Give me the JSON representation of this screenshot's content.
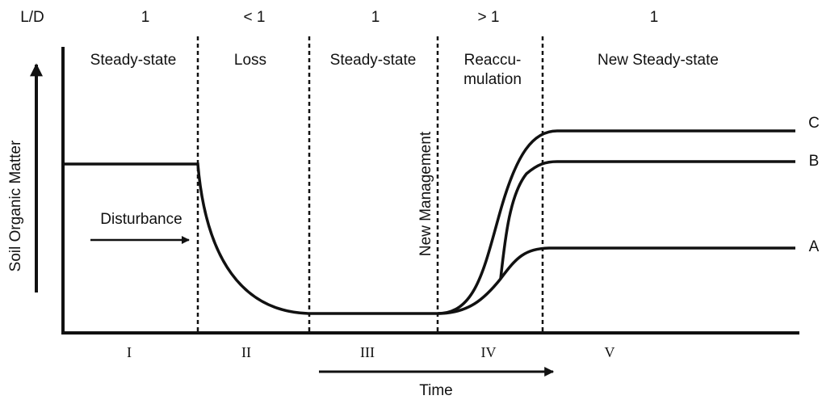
{
  "header": {
    "ratio_label": "L/D"
  },
  "phases": [
    {
      "ratio": "1",
      "name_lines": [
        "Steady-state"
      ],
      "numeral": "I"
    },
    {
      "ratio": "< 1",
      "name_lines": [
        "Loss"
      ],
      "numeral": "II"
    },
    {
      "ratio": "1",
      "name_lines": [
        "Steady-state"
      ],
      "numeral": "III"
    },
    {
      "ratio": "> 1",
      "name_lines": [
        "Reaccu-",
        "mulation"
      ],
      "numeral": "IV"
    },
    {
      "ratio": "1",
      "name_lines": [
        "New Steady-state"
      ],
      "numeral": "V"
    }
  ],
  "axes": {
    "y_label": "Soil Organic Matter",
    "x_label": "Time"
  },
  "annotations": {
    "disturbance": "Disturbance",
    "new_management": "New Management"
  },
  "curves": [
    "A",
    "B",
    "C"
  ]
}
